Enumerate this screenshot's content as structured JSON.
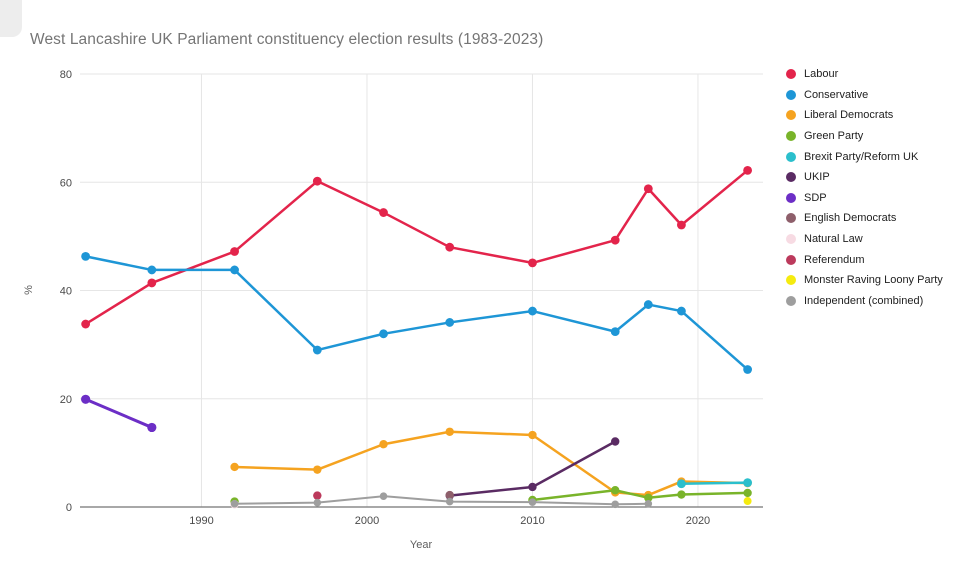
{
  "chart_data": {
    "type": "line",
    "title": "West Lancashire UK Parliament constituency election results (1983-2023)",
    "xlabel": "Year",
    "ylabel": "%",
    "ylim": [
      0,
      80
    ],
    "yticks": [
      0,
      20,
      40,
      60,
      80
    ],
    "xticks": [
      1990,
      2000,
      2010,
      2020
    ],
    "xrange": [
      1982.66,
      2023.93
    ],
    "grid": true,
    "legend_position": "right",
    "series": [
      {
        "name": "Labour",
        "color": "#E3244B",
        "width": 2.5,
        "r": 4.4,
        "lines": [
          [
            [
              1983,
              33.8
            ],
            [
              1987,
              41.4
            ],
            [
              1992,
              47.2
            ],
            [
              1997,
              60.2
            ],
            [
              2001,
              54.4
            ],
            [
              2005,
              48.0
            ],
            [
              2010,
              45.1
            ],
            [
              2015,
              49.3
            ],
            [
              2017,
              58.8
            ],
            [
              2019,
              52.1
            ],
            [
              2023,
              62.2
            ]
          ]
        ]
      },
      {
        "name": "Conservative",
        "color": "#1E96D6",
        "width": 2.5,
        "r": 4.4,
        "lines": [
          [
            [
              1983,
              46.3
            ],
            [
              1987,
              43.8
            ],
            [
              1992,
              43.8
            ],
            [
              1997,
              29.0
            ],
            [
              2001,
              32.0
            ],
            [
              2005,
              34.1
            ],
            [
              2010,
              36.2
            ],
            [
              2015,
              32.4
            ],
            [
              2017,
              37.4
            ],
            [
              2019,
              36.2
            ],
            [
              2023,
              25.4
            ]
          ]
        ]
      },
      {
        "name": "Liberal Democrats",
        "color": "#F5A320",
        "width": 2.5,
        "r": 4.2,
        "lines": [
          [
            [
              1992,
              7.4
            ],
            [
              1997,
              6.9
            ],
            [
              2001,
              11.6
            ],
            [
              2005,
              13.9
            ],
            [
              2010,
              13.3
            ],
            [
              2015,
              2.7
            ],
            [
              2017,
              2.2
            ],
            [
              2019,
              4.7
            ],
            [
              2023,
              4.4
            ]
          ]
        ]
      },
      {
        "name": "Green Party",
        "color": "#79B42A",
        "width": 2.5,
        "r": 4.2,
        "lines": [
          [
            [
              1992,
              1.0
            ]
          ],
          [
            [
              2010,
              1.3
            ],
            [
              2015,
              3.1
            ],
            [
              2017,
              1.7
            ],
            [
              2019,
              2.3
            ],
            [
              2023,
              2.6
            ]
          ]
        ]
      },
      {
        "name": "Brexit Party/Reform UK",
        "color": "#2BBFCC",
        "width": 2.5,
        "r": 4.4,
        "lines": [
          [
            [
              2019,
              4.3
            ],
            [
              2023,
              4.5
            ]
          ]
        ]
      },
      {
        "name": "UKIP",
        "color": "#5A2B63",
        "width": 2.5,
        "r": 4.2,
        "lines": [
          [
            [
              2005,
              2.1
            ],
            [
              2010,
              3.7
            ],
            [
              2015,
              12.1
            ]
          ]
        ]
      },
      {
        "name": "SDP",
        "color": "#6C2EC6",
        "width": 3,
        "r": 4.6,
        "lines": [
          [
            [
              1983,
              19.9
            ],
            [
              1987,
              14.7
            ]
          ]
        ]
      },
      {
        "name": "English Democrats",
        "color": "#8E5F6B",
        "width": 2.5,
        "r": 4.2,
        "lines": [
          [
            [
              2005,
              2.2
            ]
          ]
        ]
      },
      {
        "name": "Natural Law",
        "color": "#F7DBE3",
        "width": 2.5,
        "r": 4.2,
        "lines": [
          [
            [
              1992,
              0.5
            ]
          ]
        ]
      },
      {
        "name": "Referendum",
        "color": "#BC3A5C",
        "width": 2.5,
        "r": 4.2,
        "lines": [
          [
            [
              1997,
              2.1
            ]
          ]
        ]
      },
      {
        "name": "Monster Raving Loony Party",
        "color": "#F5EB0F",
        "width": 2.5,
        "r": 4.0,
        "lines": [
          [
            [
              2023,
              1.1
            ]
          ]
        ]
      },
      {
        "name": "Independent (combined)",
        "color": "#9E9E9E",
        "width": 2,
        "r": 3.8,
        "lines": [
          [
            [
              1992,
              0.6
            ],
            [
              1997,
              0.8
            ],
            [
              2001,
              2.0
            ],
            [
              2005,
              1.0
            ],
            [
              2010,
              0.9
            ],
            [
              2015,
              0.5
            ],
            [
              2017,
              0.6
            ]
          ]
        ]
      }
    ]
  }
}
